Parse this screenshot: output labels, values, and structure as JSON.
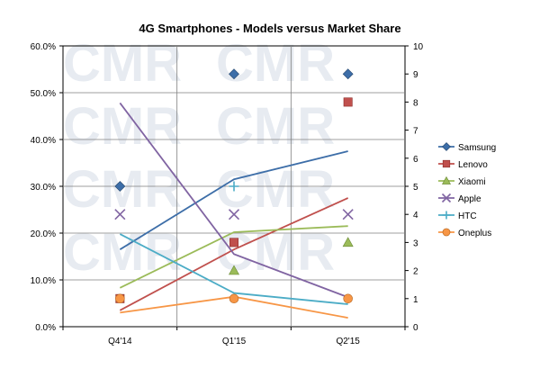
{
  "chart_data": {
    "type": "line",
    "title": "4G Smartphones - Models versus Market Share",
    "categories": [
      "Q4'14",
      "Q1'15",
      "Q2'15"
    ],
    "y_left": {
      "min": 0,
      "max": 60,
      "step": 10,
      "format": "percent",
      "tick_labels": [
        "0.0%",
        "10.0%",
        "20.0%",
        "30.0%",
        "40.0%",
        "50.0%",
        "60.0%"
      ]
    },
    "y_right": {
      "min": 0,
      "max": 10,
      "step": 1,
      "tick_labels": [
        "0",
        "1",
        "2",
        "3",
        "4",
        "5",
        "6",
        "7",
        "8",
        "9",
        "10"
      ]
    },
    "grid": true,
    "legend_position": "right",
    "watermark_text": "CMR",
    "series": [
      {
        "name": "Samsung",
        "color": "#3d6ea8",
        "marker": "diamond",
        "share": [
          16.5,
          31.5,
          37.5
        ],
        "models": [
          5,
          9,
          9
        ]
      },
      {
        "name": "Lenovo",
        "color": "#c0504d",
        "marker": "square",
        "share": [
          3.5,
          16.5,
          27.5
        ],
        "models": [
          1,
          3,
          8
        ]
      },
      {
        "name": "Xiaomi",
        "color": "#9bbb59",
        "marker": "triangle",
        "share": [
          8.3,
          20.2,
          21.5
        ],
        "models": [
          null,
          2,
          3
        ]
      },
      {
        "name": "Apple",
        "color": "#8064a2",
        "marker": "x",
        "share": [
          47.8,
          15.5,
          6.3
        ],
        "models": [
          4,
          4,
          4
        ]
      },
      {
        "name": "HTC",
        "color": "#4bacc6",
        "marker": "plus",
        "share": [
          19.8,
          7.2,
          4.8
        ],
        "models": [
          null,
          5,
          null
        ]
      },
      {
        "name": "Oneplus",
        "color": "#f79646",
        "marker": "circle",
        "share": [
          3.0,
          6.4,
          1.9
        ],
        "models": [
          1,
          1,
          1
        ]
      }
    ]
  }
}
